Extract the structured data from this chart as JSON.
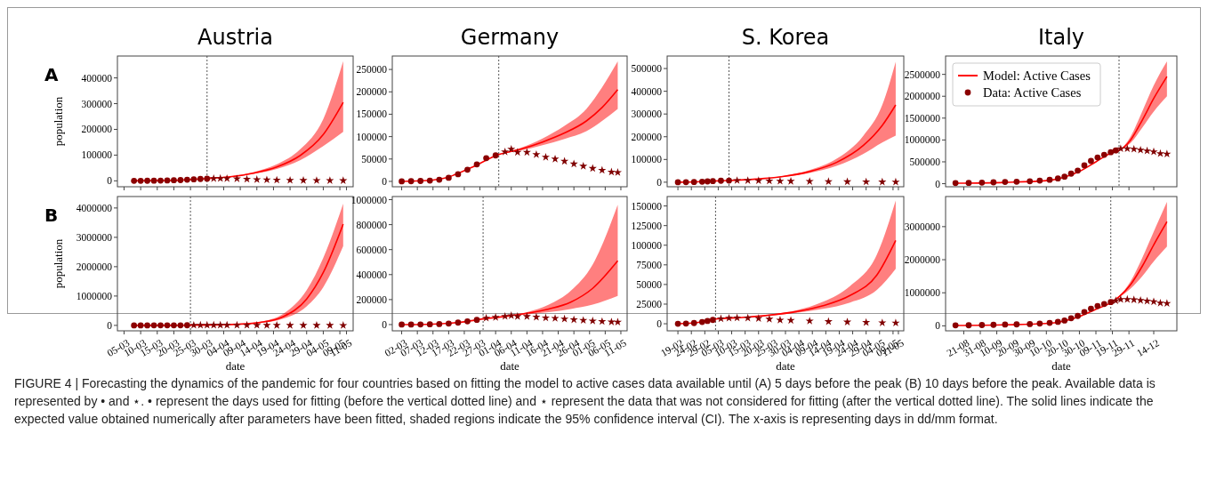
{
  "chart_data": [
    {
      "type": "line",
      "title": "Austria",
      "ylabel": "population",
      "annotations": [
        "A",
        "FIGURE 4 | Forecasting the dynamics of the pandemic for four countries based on fitting the model to active cases data available until (A) 5 days before the peak (B) 10 days before the peak. Available data is represented by • and ⋆. • represent the days used for fitting (before the vertical dotted line) and ⋆ represent the data that was not considered for fitting (after the vertical dotted line). The solid lines indicate the expected value obtained numerically after parameters have been fitted, shaded regions indicate the 95% confidence interval (CI). The x-axis is representing days in dd/mm format."
      ],
      "tick_labels": "y",
      "xlim": [
        "--03-03",
        "--05-13"
      ],
      "ylim": [
        -23000,
        485000
      ],
      "yticks": [
        0,
        100000,
        200000,
        300000,
        400000
      ],
      "xticks": [
        {
          "value": "--03-05",
          "label": null
        },
        {
          "value": "--03-10",
          "label": null
        },
        {
          "value": "--03-15",
          "label": null
        },
        {
          "value": "--03-20",
          "label": null
        },
        {
          "value": "--03-25",
          "label": null
        },
        {
          "value": "--03-30",
          "label": null
        },
        {
          "value": "--04-04",
          "label": null
        },
        {
          "value": "--04-09",
          "label": null
        },
        {
          "value": "--04-14",
          "label": null
        },
        {
          "value": "--04-19",
          "label": null
        },
        {
          "value": "--04-24",
          "label": null
        },
        {
          "value": "--04-29",
          "label": null
        },
        {
          "value": "--05-04",
          "label": null
        },
        {
          "value": "--05-09",
          "label": null
        },
        {
          "value": "--05-11",
          "label": null
        }
      ],
      "ref_lines": [
        {
          "axis": "x",
          "value": "--03-30",
          "line_style": "dotted"
        }
      ],
      "series": [
        {
          "type": "line",
          "color": "#ff0000",
          "x": [
            "--03-08",
            "--03-15",
            "--03-22",
            "--03-30",
            "--04-06",
            "--04-13",
            "--04-20",
            "--04-27",
            "--05-04",
            "--05-10"
          ],
          "values": [
            100,
            1000,
            3000,
            9000,
            16000,
            30000,
            54000,
            98000,
            180000,
            305000
          ],
          "lower": [
            100,
            1000,
            3000,
            9000,
            15000,
            27000,
            46000,
            80000,
            135000,
            190000
          ],
          "upper": [
            100,
            1000,
            3000,
            9000,
            17000,
            34000,
            64000,
            122000,
            240000,
            465000
          ]
        },
        {
          "type": "scatter",
          "marker": "circle",
          "color": "#8b0000",
          "x": [
            "--03-08",
            "--03-10",
            "--03-12",
            "--03-14",
            "--03-16",
            "--03-18",
            "--03-20",
            "--03-22",
            "--03-24",
            "--03-26",
            "--03-28",
            "--03-30"
          ],
          "values": [
            100,
            150,
            250,
            600,
            1000,
            1600,
            2300,
            3000,
            4500,
            5800,
            7200,
            8300
          ]
        },
        {
          "type": "scatter",
          "marker": "star",
          "color": "#800000",
          "x": [
            "--04-01",
            "--04-03",
            "--04-05",
            "--04-08",
            "--04-11",
            "--04-14",
            "--04-17",
            "--04-20",
            "--04-24",
            "--04-28",
            "--05-02",
            "--05-06",
            "--05-10"
          ],
          "values": [
            9000,
            9300,
            8900,
            8000,
            6500,
            5000,
            3900,
            3000,
            2200,
            1700,
            1300,
            1100,
            900
          ]
        }
      ]
    },
    {
      "type": "line",
      "title": "Germany",
      "tick_labels": "y",
      "xlim": [
        "--02-28",
        "--05-13"
      ],
      "ylim": [
        -12000,
        280000
      ],
      "yticks": [
        0,
        50000,
        100000,
        150000,
        200000,
        250000
      ],
      "xticks": [
        {
          "value": "--03-02",
          "label": null
        },
        {
          "value": "--03-07",
          "label": null
        },
        {
          "value": "--03-12",
          "label": null
        },
        {
          "value": "--03-17",
          "label": null
        },
        {
          "value": "--03-22",
          "label": null
        },
        {
          "value": "--03-27",
          "label": null
        },
        {
          "value": "--04-01",
          "label": null
        },
        {
          "value": "--04-06",
          "label": null
        },
        {
          "value": "--04-11",
          "label": null
        },
        {
          "value": "--04-16",
          "label": null
        },
        {
          "value": "--04-21",
          "label": null
        },
        {
          "value": "--04-26",
          "label": null
        },
        {
          "value": "--05-01",
          "label": null
        },
        {
          "value": "--05-06",
          "label": null
        },
        {
          "value": "--05-11",
          "label": null
        }
      ],
      "ref_lines": [
        {
          "axis": "x",
          "value": "--04-02",
          "line_style": "dotted"
        }
      ],
      "series": [
        {
          "type": "line",
          "color": "#ff0000",
          "x": [
            "--03-02",
            "--03-10",
            "--03-17",
            "--03-24",
            "--04-02",
            "--04-09",
            "--04-16",
            "--04-23",
            "--04-30",
            "--05-05",
            "--05-10"
          ],
          "values": [
            0,
            2000,
            10000,
            30000,
            60000,
            72000,
            88000,
            108000,
            135000,
            165000,
            205000
          ],
          "lower": [
            0,
            2000,
            10000,
            30000,
            60000,
            69000,
            81000,
            95000,
            112000,
            135000,
            162000
          ],
          "upper": [
            0,
            2000,
            10000,
            30000,
            60000,
            75000,
            96000,
            124000,
            162000,
            210000,
            268000
          ]
        },
        {
          "type": "scatter",
          "marker": "circle",
          "color": "#8b0000",
          "x": [
            "--03-02",
            "--03-05",
            "--03-08",
            "--03-11",
            "--03-14",
            "--03-17",
            "--03-20",
            "--03-23",
            "--03-26",
            "--03-29",
            "--04-01"
          ],
          "values": [
            150,
            400,
            900,
            1800,
            3800,
            8000,
            16000,
            26000,
            38000,
            52000,
            58000
          ]
        },
        {
          "type": "scatter",
          "marker": "star",
          "color": "#800000",
          "x": [
            "--04-04",
            "--04-06",
            "--04-08",
            "--04-11",
            "--04-14",
            "--04-17",
            "--04-20",
            "--04-23",
            "--04-26",
            "--04-29",
            "--05-02",
            "--05-05",
            "--05-08",
            "--05-10"
          ],
          "values": [
            66000,
            72000,
            65000,
            65000,
            60000,
            54000,
            50000,
            45000,
            39000,
            34000,
            29000,
            25000,
            21000,
            20000
          ]
        }
      ]
    },
    {
      "type": "line",
      "title": "S. Korea",
      "tick_labels": "y",
      "xlim": [
        "--02-15",
        "--05-13"
      ],
      "ylim": [
        -20000,
        555000
      ],
      "yticks": [
        0,
        100000,
        200000,
        300000,
        400000,
        500000
      ],
      "xticks": [
        {
          "value": "--02-19",
          "label": null
        },
        {
          "value": "--02-24",
          "label": null
        },
        {
          "value": "--02-29",
          "label": null
        },
        {
          "value": "--03-05",
          "label": null
        },
        {
          "value": "--03-10",
          "label": null
        },
        {
          "value": "--03-15",
          "label": null
        },
        {
          "value": "--03-20",
          "label": null
        },
        {
          "value": "--03-25",
          "label": null
        },
        {
          "value": "--03-30",
          "label": null
        },
        {
          "value": "--04-04",
          "label": null
        },
        {
          "value": "--04-09",
          "label": null
        },
        {
          "value": "--04-14",
          "label": null
        },
        {
          "value": "--04-19",
          "label": null
        },
        {
          "value": "--04-24",
          "label": null
        },
        {
          "value": "--04-29",
          "label": null
        },
        {
          "value": "--05-04",
          "label": null
        },
        {
          "value": "--05-09",
          "label": null
        },
        {
          "value": "--05-11",
          "label": null
        }
      ],
      "ref_lines": [
        {
          "axis": "x",
          "value": "--03-09",
          "line_style": "dotted"
        }
      ],
      "series": [
        {
          "type": "line",
          "color": "#ff0000",
          "x": [
            "--02-19",
            "--02-26",
            "--03-03",
            "--03-09",
            "--03-19",
            "--03-29",
            "--04-08",
            "--04-18",
            "--04-28",
            "--05-05",
            "--05-10"
          ],
          "values": [
            30,
            1500,
            5000,
            7300,
            13600,
            25000,
            47000,
            87000,
            162000,
            250000,
            340000
          ],
          "lower": [
            30,
            1500,
            5000,
            7300,
            13200,
            23000,
            41000,
            72000,
            125000,
            175000,
            205000
          ],
          "upper": [
            30,
            1500,
            5000,
            7300,
            14000,
            27000,
            53000,
            103000,
            205000,
            340000,
            530000
          ]
        },
        {
          "type": "scatter",
          "marker": "circle",
          "color": "#8b0000",
          "x": [
            "--02-19",
            "--02-22",
            "--02-25",
            "--02-28",
            "--03-01",
            "--03-03",
            "--03-06",
            "--03-09"
          ],
          "values": [
            30,
            300,
            900,
            2200,
            3500,
            4900,
            6400,
            7200
          ]
        },
        {
          "type": "scatter",
          "marker": "star",
          "color": "#800000",
          "x": [
            "--03-12",
            "--03-16",
            "--03-20",
            "--03-24",
            "--03-28",
            "--04-01",
            "--04-08",
            "--04-15",
            "--04-22",
            "--04-29",
            "--05-05",
            "--05-10"
          ],
          "values": [
            7500,
            7300,
            6800,
            5900,
            4700,
            4300,
            3500,
            2800,
            2200,
            1700,
            1200,
            1000
          ]
        }
      ]
    },
    {
      "type": "line",
      "title": "Italy",
      "tick_labels": "y",
      "legend": "top left",
      "xlim": [
        "--08-10",
        "--12-28"
      ],
      "ylim": [
        -70000,
        2920000
      ],
      "yticks": [
        0,
        500000,
        1000000,
        1500000,
        2000000,
        2500000
      ],
      "xticks": [
        {
          "value": "--08-21",
          "label": null
        },
        {
          "value": "--08-31",
          "label": null
        },
        {
          "value": "--09-10",
          "label": null
        },
        {
          "value": "--09-20",
          "label": null
        },
        {
          "value": "--09-30",
          "label": null
        },
        {
          "value": "--10-10",
          "label": null
        },
        {
          "value": "--10-20",
          "label": null
        },
        {
          "value": "--10-30",
          "label": null
        },
        {
          "value": "--11-09",
          "label": null
        },
        {
          "value": "--11-19",
          "label": null
        },
        {
          "value": "--11-29",
          "label": null
        },
        {
          "value": "--12-14",
          "label": null
        }
      ],
      "ref_lines": [
        {
          "axis": "x",
          "value": "--11-23",
          "line_style": "dotted"
        }
      ],
      "series": [
        {
          "type": "line",
          "name": "Model: Active Cases",
          "color": "#ff0000",
          "x": [
            "--08-16",
            "--09-15",
            "--10-10",
            "--10-20",
            "--10-30",
            "--11-09",
            "--11-18",
            "--11-23",
            "--11-30",
            "--12-07",
            "--12-14",
            "--12-22"
          ],
          "values": [
            10000,
            30000,
            70000,
            140000,
            280000,
            500000,
            700000,
            760000,
            1000000,
            1450000,
            1950000,
            2450000
          ],
          "lower": [
            10000,
            30000,
            70000,
            140000,
            280000,
            500000,
            700000,
            760000,
            930000,
            1280000,
            1650000,
            2000000
          ],
          "upper": [
            10000,
            30000,
            70000,
            140000,
            280000,
            500000,
            700000,
            760000,
            1080000,
            1650000,
            2250000,
            2800000
          ]
        },
        {
          "type": "scatter",
          "name": "Data: Active Cases",
          "marker": "circle",
          "color": "#8b0000",
          "x": [
            "--08-16",
            "--08-24",
            "--09-01",
            "--09-08",
            "--09-15",
            "--09-22",
            "--09-30",
            "--10-06",
            "--10-12",
            "--10-17",
            "--10-21",
            "--10-25",
            "--10-29",
            "--11-02",
            "--11-06",
            "--11-10",
            "--11-14",
            "--11-18",
            "--11-21"
          ],
          "values": [
            15000,
            18000,
            25000,
            32000,
            40000,
            45000,
            55000,
            70000,
            90000,
            120000,
            160000,
            230000,
            300000,
            420000,
            520000,
            600000,
            660000,
            720000,
            760000
          ]
        },
        {
          "type": "scatter",
          "marker": "star",
          "color": "#800000",
          "x": [
            "--11-24",
            "--11-28",
            "--12-02",
            "--12-06",
            "--12-10",
            "--12-14",
            "--12-18",
            "--12-22"
          ],
          "values": [
            800000,
            800000,
            790000,
            770000,
            750000,
            730000,
            690000,
            680000
          ]
        }
      ]
    },
    {
      "type": "line",
      "xlabel": "date",
      "ylabel": "population",
      "annotations": [
        "B"
      ],
      "xlim": [
        "--03-03",
        "--05-13"
      ],
      "ylim": [
        -185000,
        4390000
      ],
      "yticks": [
        0,
        1000000,
        2000000,
        3000000,
        4000000
      ],
      "xticks": [
        {
          "value": "--03-05",
          "label": "05-03"
        },
        {
          "value": "--03-10",
          "label": "10-03"
        },
        {
          "value": "--03-15",
          "label": "15-03"
        },
        {
          "value": "--03-20",
          "label": "20-03"
        },
        {
          "value": "--03-25",
          "label": "25-03"
        },
        {
          "value": "--03-30",
          "label": "30-03"
        },
        {
          "value": "--04-04",
          "label": "04-04"
        },
        {
          "value": "--04-09",
          "label": "09-04"
        },
        {
          "value": "--04-14",
          "label": "14-04"
        },
        {
          "value": "--04-19",
          "label": "19-04"
        },
        {
          "value": "--04-24",
          "label": "24-04"
        },
        {
          "value": "--04-29",
          "label": "29-04"
        },
        {
          "value": "--05-04",
          "label": "04-05"
        },
        {
          "value": "--05-09",
          "label": "09-05"
        },
        {
          "value": "--05-11",
          "label": "11-05"
        }
      ],
      "ref_lines": [
        {
          "axis": "x",
          "value": "--03-25",
          "line_style": "dotted"
        }
      ],
      "series": [
        {
          "type": "line",
          "color": "#ff0000",
          "x": [
            "--03-08",
            "--03-16",
            "--03-25",
            "--04-01",
            "--04-08",
            "--04-15",
            "--04-22",
            "--04-29",
            "--05-04",
            "--05-10"
          ],
          "values": [
            100,
            1000,
            5000,
            14000,
            38000,
            100000,
            300000,
            900000,
            1800000,
            3450000
          ],
          "lower": [
            100,
            1000,
            5000,
            13000,
            34000,
            80000,
            230000,
            650000,
            1300000,
            2700000
          ],
          "upper": [
            100,
            1000,
            5000,
            15000,
            42000,
            125000,
            400000,
            1200000,
            2300000,
            4150000
          ]
        },
        {
          "type": "scatter",
          "marker": "circle",
          "color": "#8b0000",
          "x": [
            "--03-08",
            "--03-10",
            "--03-12",
            "--03-14",
            "--03-16",
            "--03-18",
            "--03-20",
            "--03-22",
            "--03-24"
          ],
          "values": [
            100,
            150,
            250,
            600,
            1000,
            1600,
            2300,
            3000,
            4500
          ]
        },
        {
          "type": "scatter",
          "marker": "star",
          "color": "#800000",
          "x": [
            "--03-26",
            "--03-28",
            "--03-30",
            "--04-01",
            "--04-03",
            "--04-05",
            "--04-08",
            "--04-11",
            "--04-14",
            "--04-17",
            "--04-20",
            "--04-24",
            "--04-28",
            "--05-02",
            "--05-06",
            "--05-10"
          ],
          "values": [
            5800,
            7200,
            8300,
            9000,
            9300,
            8900,
            8000,
            6500,
            5000,
            3900,
            3000,
            2200,
            1700,
            1300,
            1100,
            900
          ]
        }
      ]
    },
    {
      "type": "line",
      "xlabel": "date",
      "xlim": [
        "--02-28",
        "--05-13"
      ],
      "ylim": [
        -50000,
        1025000
      ],
      "yticks": [
        0,
        200000,
        400000,
        600000,
        800000,
        1000000
      ],
      "xticks": [
        {
          "value": "--03-02",
          "label": "02-03"
        },
        {
          "value": "--03-07",
          "label": "07-03"
        },
        {
          "value": "--03-12",
          "label": "12-03"
        },
        {
          "value": "--03-17",
          "label": "17-03"
        },
        {
          "value": "--03-22",
          "label": "22-03"
        },
        {
          "value": "--03-27",
          "label": "27-03"
        },
        {
          "value": "--04-01",
          "label": "01-04"
        },
        {
          "value": "--04-06",
          "label": "06-04"
        },
        {
          "value": "--04-11",
          "label": "11-04"
        },
        {
          "value": "--04-16",
          "label": "16-04"
        },
        {
          "value": "--04-21",
          "label": "21-04"
        },
        {
          "value": "--04-26",
          "label": "26-04"
        },
        {
          "value": "--05-01",
          "label": "01-05"
        },
        {
          "value": "--05-06",
          "label": "06-05"
        },
        {
          "value": "--05-11",
          "label": "11-05"
        }
      ],
      "ref_lines": [
        {
          "axis": "x",
          "value": "--03-28",
          "line_style": "dotted"
        }
      ],
      "series": [
        {
          "type": "line",
          "color": "#ff0000",
          "x": [
            "--03-02",
            "--03-10",
            "--03-17",
            "--03-22",
            "--03-28",
            "--04-04",
            "--04-11",
            "--04-18",
            "--04-25",
            "--05-02",
            "--05-10"
          ],
          "values": [
            0,
            2000,
            10000,
            22000,
            45000,
            65000,
            90000,
            125000,
            180000,
            290000,
            510000
          ],
          "lower": [
            0,
            2000,
            10000,
            22000,
            45000,
            64000,
            82000,
            100000,
            125000,
            160000,
            230000
          ],
          "upper": [
            0,
            2000,
            10000,
            22000,
            45000,
            66000,
            100000,
            160000,
            270000,
            480000,
            960000
          ]
        },
        {
          "type": "scatter",
          "marker": "circle",
          "color": "#8b0000",
          "x": [
            "--03-02",
            "--03-05",
            "--03-08",
            "--03-11",
            "--03-14",
            "--03-17",
            "--03-20",
            "--03-23",
            "--03-26"
          ],
          "values": [
            150,
            400,
            900,
            1800,
            3800,
            8000,
            16000,
            26000,
            38000
          ]
        },
        {
          "type": "scatter",
          "marker": "star",
          "color": "#800000",
          "x": [
            "--03-29",
            "--04-01",
            "--04-04",
            "--04-06",
            "--04-08",
            "--04-11",
            "--04-14",
            "--04-17",
            "--04-20",
            "--04-23",
            "--04-26",
            "--04-29",
            "--05-02",
            "--05-05",
            "--05-08",
            "--05-10"
          ],
          "values": [
            52000,
            58000,
            66000,
            72000,
            65000,
            65000,
            60000,
            54000,
            50000,
            45000,
            39000,
            34000,
            29000,
            25000,
            21000,
            20000
          ]
        }
      ]
    },
    {
      "type": "line",
      "xlabel": "date",
      "xlim": [
        "--02-15",
        "--05-13"
      ],
      "ylim": [
        -9000,
        162000
      ],
      "yticks": [
        0,
        25000,
        50000,
        75000,
        100000,
        125000,
        150000
      ],
      "xticks": [
        {
          "value": "--02-19",
          "label": "19-02"
        },
        {
          "value": "--02-24",
          "label": "24-02"
        },
        {
          "value": "--02-29",
          "label": "29-02"
        },
        {
          "value": "--03-05",
          "label": "05-03"
        },
        {
          "value": "--03-10",
          "label": "10-03"
        },
        {
          "value": "--03-15",
          "label": "15-03"
        },
        {
          "value": "--03-20",
          "label": "20-03"
        },
        {
          "value": "--03-25",
          "label": "25-03"
        },
        {
          "value": "--03-30",
          "label": "30-03"
        },
        {
          "value": "--04-04",
          "label": "04-04"
        },
        {
          "value": "--04-09",
          "label": "09-04"
        },
        {
          "value": "--04-14",
          "label": "14-04"
        },
        {
          "value": "--04-19",
          "label": "19-04"
        },
        {
          "value": "--04-24",
          "label": "24-04"
        },
        {
          "value": "--04-29",
          "label": "29-04"
        },
        {
          "value": "--05-04",
          "label": "04-05"
        },
        {
          "value": "--05-09",
          "label": "09-05"
        },
        {
          "value": "--05-11",
          "label": "11-05"
        }
      ],
      "ref_lines": [
        {
          "axis": "x",
          "value": "--03-04",
          "line_style": "dotted"
        }
      ],
      "series": [
        {
          "type": "line",
          "color": "#ff0000",
          "x": [
            "--02-19",
            "--02-26",
            "--03-04",
            "--03-14",
            "--03-24",
            "--04-03",
            "--04-13",
            "--04-23",
            "--05-03",
            "--05-10"
          ],
          "values": [
            30,
            1500,
            6000,
            8000,
            11000,
            15500,
            23000,
            36000,
            62000,
            106000
          ],
          "lower": [
            30,
            1500,
            6000,
            7800,
            10200,
            14000,
            19000,
            27000,
            43000,
            70000
          ],
          "upper": [
            30,
            1500,
            6000,
            8200,
            11800,
            17000,
            28000,
            48000,
            88000,
            157000
          ]
        },
        {
          "type": "scatter",
          "marker": "circle",
          "color": "#8b0000",
          "x": [
            "--02-19",
            "--02-22",
            "--02-25",
            "--02-28",
            "--03-01",
            "--03-03"
          ],
          "values": [
            30,
            300,
            900,
            2200,
            3500,
            4900
          ]
        },
        {
          "type": "scatter",
          "marker": "star",
          "color": "#800000",
          "x": [
            "--03-06",
            "--03-09",
            "--03-12",
            "--03-16",
            "--03-20",
            "--03-24",
            "--03-28",
            "--04-01",
            "--04-08",
            "--04-15",
            "--04-22",
            "--04-29",
            "--05-05",
            "--05-10"
          ],
          "values": [
            6400,
            7200,
            7500,
            7300,
            6800,
            5900,
            4700,
            4300,
            3500,
            2800,
            2200,
            1700,
            1200,
            1000
          ]
        }
      ]
    },
    {
      "type": "line",
      "xlabel": "date",
      "xlim": [
        "--08-10",
        "--12-28"
      ],
      "ylim": [
        -150000,
        3910000
      ],
      "yticks": [
        0,
        1000000,
        2000000,
        3000000
      ],
      "xticks": [
        {
          "value": "--08-21",
          "label": "21-08"
        },
        {
          "value": "--08-31",
          "label": "31-08"
        },
        {
          "value": "--09-10",
          "label": "10-09"
        },
        {
          "value": "--09-20",
          "label": "20-09"
        },
        {
          "value": "--09-30",
          "label": "30-09"
        },
        {
          "value": "--10-10",
          "label": "10-10"
        },
        {
          "value": "--10-20",
          "label": "20-10"
        },
        {
          "value": "--10-30",
          "label": "30-10"
        },
        {
          "value": "--11-09",
          "label": "09-11"
        },
        {
          "value": "--11-19",
          "label": "19-11"
        },
        {
          "value": "--11-29",
          "label": "29-11"
        },
        {
          "value": "--12-14",
          "label": "14-12"
        }
      ],
      "ref_lines": [
        {
          "axis": "x",
          "value": "--11-18",
          "line_style": "dotted"
        }
      ],
      "series": [
        {
          "type": "line",
          "color": "#ff0000",
          "x": [
            "--08-16",
            "--09-15",
            "--10-10",
            "--10-20",
            "--10-30",
            "--11-09",
            "--11-18",
            "--11-23",
            "--11-30",
            "--12-07",
            "--12-14",
            "--12-22"
          ],
          "values": [
            10000,
            30000,
            70000,
            140000,
            280000,
            500000,
            700000,
            880000,
            1250000,
            1800000,
            2450000,
            3150000
          ],
          "lower": [
            10000,
            30000,
            70000,
            140000,
            280000,
            500000,
            700000,
            860000,
            1130000,
            1500000,
            1950000,
            2400000
          ],
          "upper": [
            10000,
            30000,
            70000,
            140000,
            280000,
            500000,
            700000,
            900000,
            1350000,
            2050000,
            2850000,
            3750000
          ]
        },
        {
          "type": "scatter",
          "marker": "circle",
          "color": "#8b0000",
          "x": [
            "--08-16",
            "--08-24",
            "--09-01",
            "--09-08",
            "--09-15",
            "--09-22",
            "--09-30",
            "--10-06",
            "--10-12",
            "--10-17",
            "--10-21",
            "--10-25",
            "--10-29",
            "--11-02",
            "--11-06",
            "--11-10",
            "--11-14",
            "--11-18"
          ],
          "values": [
            15000,
            18000,
            25000,
            32000,
            40000,
            45000,
            55000,
            70000,
            90000,
            120000,
            160000,
            230000,
            300000,
            420000,
            520000,
            600000,
            660000,
            720000
          ]
        },
        {
          "type": "scatter",
          "marker": "star",
          "color": "#800000",
          "x": [
            "--11-21",
            "--11-24",
            "--11-28",
            "--12-02",
            "--12-06",
            "--12-10",
            "--12-14",
            "--12-18",
            "--12-22"
          ],
          "values": [
            760000,
            800000,
            800000,
            790000,
            770000,
            750000,
            730000,
            690000,
            680000
          ]
        }
      ]
    }
  ]
}
